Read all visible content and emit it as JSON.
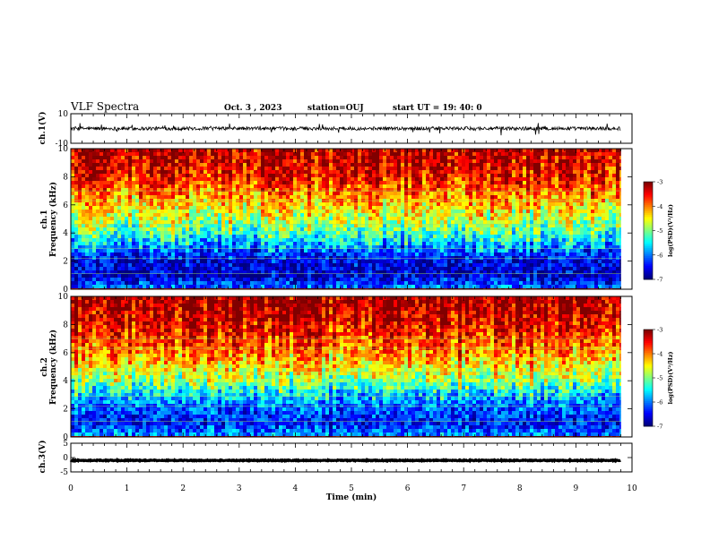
{
  "header": {
    "title": "VLF Spectra",
    "date": "Oct. 3 , 2023",
    "station": "station=OUJ",
    "start_ut": "start UT = 19: 40: 0"
  },
  "chart_data": [
    {
      "type": "line",
      "panel": "ch1-waveform",
      "ylabel": "ch.1(V)",
      "ylim": [
        -10,
        10
      ],
      "ytick_labels": [
        "10",
        "-10"
      ],
      "baseline": 0,
      "noise_amplitude": 1.2,
      "color": "#000000"
    },
    {
      "type": "heatmap",
      "panel": "ch1-spectrogram",
      "ylabel": "Frequency (kHz)",
      "channel_label": "ch.1",
      "ylim": [
        0,
        10
      ],
      "ytick_labels": [
        "0",
        "2",
        "4",
        "6",
        "8",
        "10"
      ],
      "xlim": [
        0,
        10
      ],
      "data_end_min": 9.8,
      "colorbar": {
        "label": "log(PSD)(V²/Hz)",
        "min": -7,
        "max": -3,
        "tick_labels": [
          "-3",
          "-4",
          "-5",
          "-6",
          "-7"
        ]
      },
      "mean_profile_freq_khz": [
        0,
        1,
        2,
        3,
        4,
        5,
        6,
        7,
        8,
        9,
        10
      ],
      "mean_profile_log_psd": [
        -6.0,
        -6.8,
        -6.6,
        -6.0,
        -5.3,
        -4.8,
        -4.4,
        -4.0,
        -3.6,
        -3.4,
        -3.3
      ]
    },
    {
      "type": "heatmap",
      "panel": "ch2-spectrogram",
      "ylabel": "Frequency (kHz)",
      "channel_label": "ch.2",
      "ylim": [
        0,
        10
      ],
      "ytick_labels": [
        "0",
        "2",
        "4",
        "6",
        "8",
        "10"
      ],
      "xlim": [
        0,
        10
      ],
      "data_end_min": 9.8,
      "colorbar": {
        "label": "log(PSD)(V²/Hz)",
        "min": -7,
        "max": -3,
        "tick_labels": [
          "-3",
          "-4",
          "-5",
          "-6",
          "-7"
        ]
      },
      "mean_profile_freq_khz": [
        0,
        1,
        2,
        3,
        4,
        5,
        6,
        7,
        8,
        9,
        10
      ],
      "mean_profile_log_psd": [
        -5.9,
        -6.5,
        -6.2,
        -5.7,
        -5.0,
        -4.5,
        -4.1,
        -3.8,
        -3.5,
        -3.3,
        -3.2
      ]
    },
    {
      "type": "line",
      "panel": "ch3-waveform",
      "ylabel": "ch.3(V)",
      "ylim": [
        -5,
        5
      ],
      "ytick_labels": [
        "5",
        "0",
        "-5"
      ],
      "baseline": -1,
      "noise_amplitude": 0.15,
      "color": "#000000"
    }
  ],
  "x_axis": {
    "label": "Time (min)",
    "xlim": [
      0,
      10
    ],
    "tick_labels": [
      "0",
      "1",
      "2",
      "3",
      "4",
      "5",
      "6",
      "7",
      "8",
      "9",
      "10"
    ]
  }
}
